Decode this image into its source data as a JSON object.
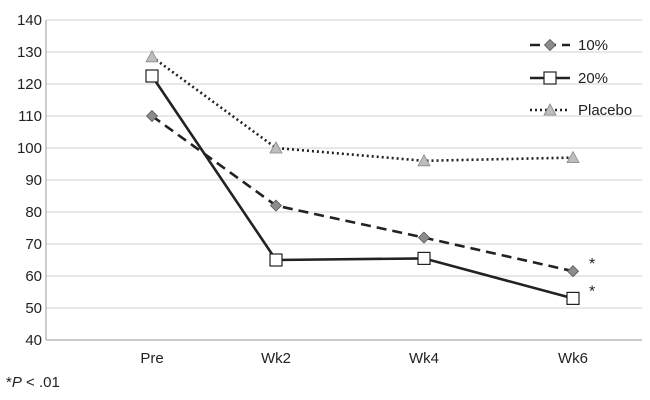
{
  "chart_data": {
    "type": "line",
    "categories": [
      "Pre",
      "Wk2",
      "Wk4",
      "Wk6"
    ],
    "ylim": [
      40,
      140
    ],
    "yticks": [
      40,
      50,
      60,
      70,
      80,
      90,
      100,
      110,
      120,
      130,
      140
    ],
    "grid": true,
    "legend_position": "top-right",
    "series": [
      {
        "name": "10%",
        "values": [
          110,
          82,
          72,
          61.5
        ],
        "style": "dashed",
        "marker": "diamond",
        "color": "#222222",
        "marker_color": "#8c8c8c"
      },
      {
        "name": "20%",
        "values": [
          122.5,
          65,
          65.5,
          53
        ],
        "style": "solid",
        "marker": "square",
        "color": "#222222",
        "marker_color": "#ffffff"
      },
      {
        "name": "Placebo",
        "values": [
          128.5,
          100,
          96,
          97
        ],
        "style": "dotted",
        "marker": "triangle",
        "color": "#222222",
        "marker_color": "#bdbdbd"
      }
    ],
    "annotations": [
      {
        "text": "*",
        "category": "Wk6",
        "series": "10%"
      },
      {
        "text": "*",
        "category": "Wk6",
        "series": "20%"
      }
    ]
  },
  "footnote": {
    "star": "*",
    "p": "P",
    "rest": " < .01"
  }
}
